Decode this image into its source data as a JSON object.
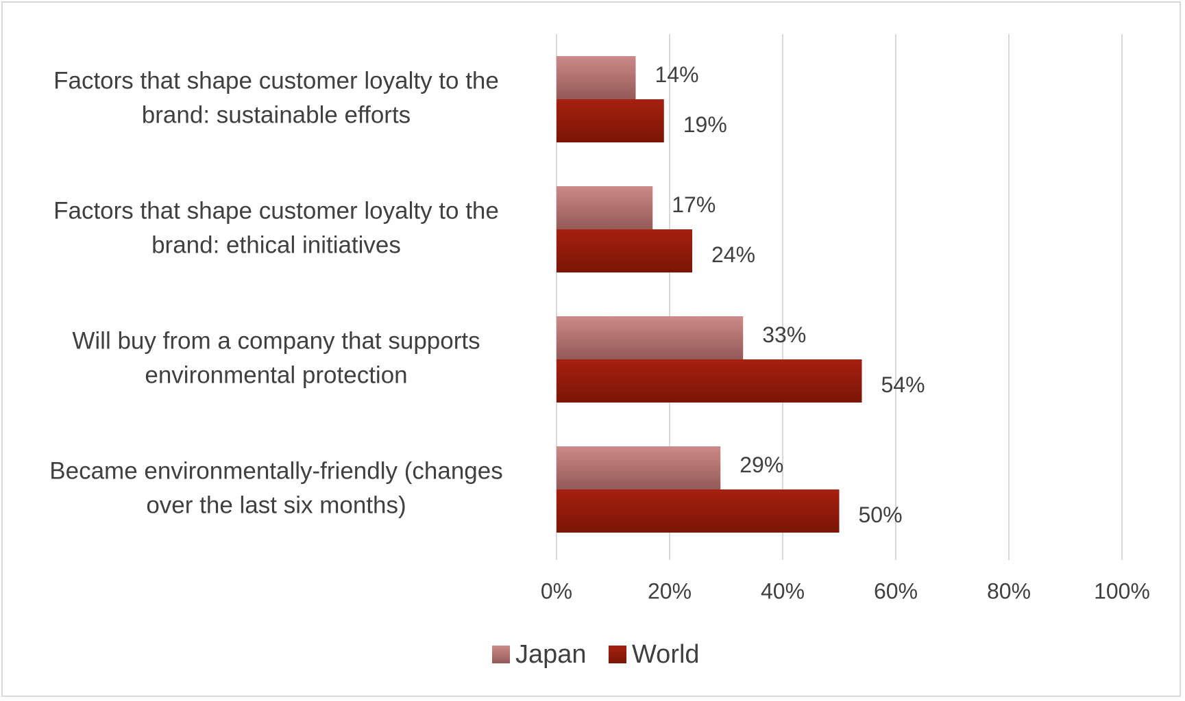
{
  "chart_data": {
    "type": "bar",
    "orientation": "horizontal",
    "categories": [
      [
        "Factors that shape customer loyalty to the",
        "brand: sustainable efforts"
      ],
      [
        "Factors that shape customer loyalty to the",
        "brand: ethical initiatives"
      ],
      [
        "Will buy from a company that supports",
        "environmental protection"
      ],
      [
        "Became environmentally-friendly (changes",
        "over the last six months)"
      ]
    ],
    "series": [
      {
        "name": "Japan",
        "values": [
          14,
          17,
          33,
          29
        ],
        "labels": [
          "14%",
          "17%",
          "33%",
          "29%"
        ],
        "color": "#b86a6a"
      },
      {
        "name": "World",
        "values": [
          19,
          24,
          54,
          50
        ],
        "labels": [
          "19%",
          "24%",
          "54%",
          "50%"
        ],
        "color": "#9a1a0a"
      }
    ],
    "xlim": [
      0,
      100
    ],
    "ticks": [
      0,
      20,
      40,
      60,
      80,
      100
    ],
    "tick_labels": [
      "0%",
      "20%",
      "40%",
      "60%",
      "80%",
      "100%"
    ],
    "grid": true,
    "legend_position": "bottom",
    "title": "",
    "xlabel": "",
    "ylabel": ""
  }
}
